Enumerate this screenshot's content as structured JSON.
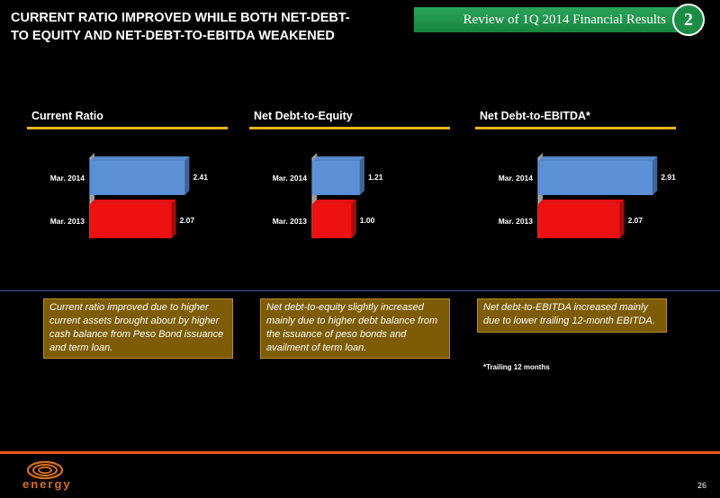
{
  "header": {
    "title": "CURRENT RATIO IMPROVED WHILE BOTH NET-DEBT-TO EQUITY AND NET-DEBT-TO-EBITDA WEAKENED",
    "banner": "Review of 1Q 2014 Financial Results",
    "section_number": "2"
  },
  "chart_data": [
    {
      "type": "bar",
      "orientation": "horizontal",
      "title": "Current Ratio",
      "categories": [
        "Mar. 2014",
        "Mar. 2013"
      ],
      "values": [
        2.41,
        2.07
      ],
      "value_labels": [
        "2.41",
        "2.07"
      ],
      "colors": [
        "#5b8fd6",
        "#ee1111"
      ]
    },
    {
      "type": "bar",
      "orientation": "horizontal",
      "title": "Net Debt-to-Equity",
      "categories": [
        "Mar. 2014",
        "Mar. 2013"
      ],
      "values": [
        1.21,
        1.0
      ],
      "value_labels": [
        "1.21",
        "1.00"
      ],
      "colors": [
        "#5b8fd6",
        "#ee1111"
      ]
    },
    {
      "type": "bar",
      "orientation": "horizontal",
      "title": "Net Debt-to-EBITDA*",
      "categories": [
        "Mar. 2014",
        "Mar. 2013"
      ],
      "values": [
        2.91,
        2.07
      ],
      "value_labels": [
        "2.91",
        "2.07"
      ],
      "colors": [
        "#5b8fd6",
        "#ee1111"
      ]
    }
  ],
  "notes": [
    "Current ratio improved due  to higher current assets brought about by higher cash balance from Peso Bond issuance and term loan.",
    "Net debt-to-equity slightly increased mainly due to higher debt balance from the issuance of peso bonds and availment of term loan.",
    "Net debt-to-EBITDA increased mainly due to lower trailing 12-month EBITDA."
  ],
  "footnote": "*Trailing 12 months",
  "footer": {
    "logo_text": "energy",
    "page_number": "26"
  }
}
